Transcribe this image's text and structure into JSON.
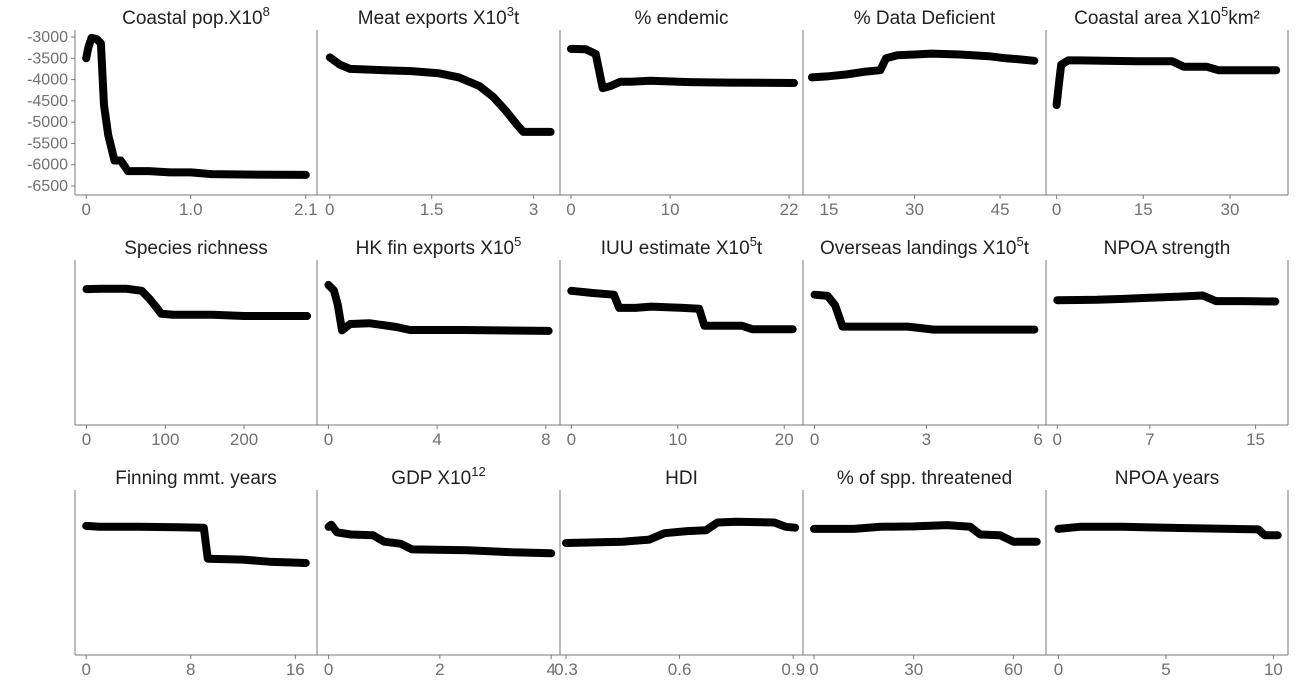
{
  "chart_data": {
    "type": "line",
    "layout": "small-multiples",
    "y_axis": {
      "ticks": [
        -3000,
        -3500,
        -4000,
        -4500,
        -5000,
        -5500,
        -6000,
        -6500
      ],
      "labels": [
        "-3000",
        "-3500",
        "-4000",
        "-4500",
        "-5000",
        "-5500",
        "-6000",
        "-6500"
      ]
    },
    "panels": [
      {
        "title": "Coastal pop.X10",
        "sup": "8",
        "suffix": "",
        "xlim": [
          -0.05,
          2.15
        ],
        "xticks": [
          0,
          1.0,
          2.1
        ],
        "xtick_labels": [
          "0",
          "1.0",
          "2.1"
        ],
        "points": [
          [
            0,
            -3500
          ],
          [
            0.02,
            -3250
          ],
          [
            0.05,
            -3020
          ],
          [
            0.1,
            -3050
          ],
          [
            0.14,
            -3150
          ],
          [
            0.17,
            -4600
          ],
          [
            0.21,
            -5300
          ],
          [
            0.27,
            -5900
          ],
          [
            0.33,
            -5900
          ],
          [
            0.4,
            -6150
          ],
          [
            0.6,
            -6150
          ],
          [
            0.8,
            -6180
          ],
          [
            1.0,
            -6180
          ],
          [
            1.2,
            -6220
          ],
          [
            1.5,
            -6230
          ],
          [
            2.1,
            -6240
          ]
        ]
      },
      {
        "title": "Meat exports X10",
        "sup": "3",
        "suffix": "t",
        "xlim": [
          -0.1,
          3.3
        ],
        "xticks": [
          0,
          1.5,
          3
        ],
        "xtick_labels": [
          "0",
          "1.5",
          "3"
        ],
        "points": [
          [
            0,
            -3480
          ],
          [
            0.15,
            -3650
          ],
          [
            0.3,
            -3750
          ],
          [
            0.8,
            -3780
          ],
          [
            1.2,
            -3800
          ],
          [
            1.6,
            -3850
          ],
          [
            1.9,
            -3950
          ],
          [
            2.2,
            -4150
          ],
          [
            2.4,
            -4400
          ],
          [
            2.6,
            -4750
          ],
          [
            2.75,
            -5050
          ],
          [
            2.85,
            -5230
          ],
          [
            3.25,
            -5230
          ]
        ]
      },
      {
        "title": "% endemic",
        "sup": "",
        "suffix": "",
        "xlim": [
          -0.5,
          22.8
        ],
        "xticks": [
          0,
          10,
          22
        ],
        "xtick_labels": [
          "0",
          "10",
          "22"
        ],
        "points": [
          [
            0,
            -3280
          ],
          [
            1.5,
            -3290
          ],
          [
            2.5,
            -3400
          ],
          [
            3.2,
            -4200
          ],
          [
            4,
            -4150
          ],
          [
            5,
            -4050
          ],
          [
            6,
            -4050
          ],
          [
            8,
            -4030
          ],
          [
            12,
            -4060
          ],
          [
            16,
            -4070
          ],
          [
            22.5,
            -4080
          ]
        ]
      },
      {
        "title": "% Data Deficient",
        "sup": "",
        "suffix": "",
        "xlim": [
          11.5,
          52
        ],
        "xticks": [
          15,
          30,
          45
        ],
        "xtick_labels": [
          "15",
          "30",
          "45"
        ],
        "points": [
          [
            12,
            -3950
          ],
          [
            15,
            -3920
          ],
          [
            18,
            -3880
          ],
          [
            21,
            -3820
          ],
          [
            24,
            -3780
          ],
          [
            25,
            -3500
          ],
          [
            27,
            -3430
          ],
          [
            30,
            -3410
          ],
          [
            33,
            -3390
          ],
          [
            38,
            -3410
          ],
          [
            43,
            -3450
          ],
          [
            46,
            -3500
          ],
          [
            48,
            -3520
          ],
          [
            51,
            -3560
          ]
        ]
      },
      {
        "title": "Coastal area X10",
        "sup": "5",
        "suffix": "km²",
        "xlim": [
          -0.8,
          39
        ],
        "xticks": [
          0,
          15,
          30
        ],
        "xtick_labels": [
          "0",
          "15",
          "30"
        ],
        "points": [
          [
            0,
            -4600
          ],
          [
            0.4,
            -4100
          ],
          [
            0.8,
            -3650
          ],
          [
            2,
            -3550
          ],
          [
            4,
            -3550
          ],
          [
            8,
            -3560
          ],
          [
            14,
            -3570
          ],
          [
            20,
            -3570
          ],
          [
            22,
            -3700
          ],
          [
            26,
            -3700
          ],
          [
            28,
            -3780
          ],
          [
            38,
            -3780
          ]
        ]
      },
      {
        "title": "Species richness",
        "sup": "",
        "suffix": "",
        "xlim": [
          -7,
          285
        ],
        "xticks": [
          0,
          100,
          200
        ],
        "xtick_labels": [
          "0",
          "100",
          "200"
        ],
        "points": [
          [
            0,
            -3520
          ],
          [
            20,
            -3510
          ],
          [
            50,
            -3510
          ],
          [
            70,
            -3560
          ],
          [
            80,
            -3750
          ],
          [
            88,
            -3930
          ],
          [
            95,
            -4100
          ],
          [
            110,
            -4120
          ],
          [
            160,
            -4120
          ],
          [
            200,
            -4150
          ],
          [
            280,
            -4150
          ]
        ]
      },
      {
        "title": "HK fin exports X10",
        "sup": "5",
        "suffix": "",
        "xlim": [
          -0.2,
          8.3
        ],
        "xticks": [
          0,
          4,
          8
        ],
        "xtick_labels": [
          "0",
          "4",
          "8"
        ],
        "points": [
          [
            0,
            -3420
          ],
          [
            0.2,
            -3550
          ],
          [
            0.35,
            -3900
          ],
          [
            0.5,
            -4490
          ],
          [
            0.8,
            -4340
          ],
          [
            1.5,
            -4320
          ],
          [
            2.5,
            -4410
          ],
          [
            3,
            -4480
          ],
          [
            5,
            -4480
          ],
          [
            8.1,
            -4500
          ]
        ]
      },
      {
        "title": "IUU estimate X10",
        "sup": "5",
        "suffix": "t",
        "xlim": [
          -0.5,
          21.2
        ],
        "xticks": [
          0,
          10,
          20
        ],
        "xtick_labels": [
          "0",
          "10",
          "20"
        ],
        "points": [
          [
            0,
            -3560
          ],
          [
            2,
            -3610
          ],
          [
            4,
            -3650
          ],
          [
            4.5,
            -3960
          ],
          [
            6,
            -3960
          ],
          [
            7.5,
            -3930
          ],
          [
            10.5,
            -3960
          ],
          [
            12,
            -3980
          ],
          [
            12.5,
            -4380
          ],
          [
            16,
            -4380
          ],
          [
            17,
            -4460
          ],
          [
            20.8,
            -4460
          ]
        ]
      },
      {
        "title": "Overseas landings X10",
        "sup": "5",
        "suffix": "t",
        "xlim": [
          -0.15,
          6.05
        ],
        "xticks": [
          0,
          3,
          6
        ],
        "xtick_labels": [
          "0",
          "3",
          "6"
        ],
        "points": [
          [
            0,
            -3650
          ],
          [
            0.35,
            -3680
          ],
          [
            0.55,
            -3900
          ],
          [
            0.75,
            -4400
          ],
          [
            1.5,
            -4400
          ],
          [
            2.5,
            -4400
          ],
          [
            3.2,
            -4470
          ],
          [
            5.9,
            -4470
          ]
        ]
      },
      {
        "title": "NPOA strength",
        "sup": "",
        "suffix": "",
        "xlim": [
          -0.4,
          17
        ],
        "xticks": [
          0,
          7,
          15
        ],
        "xtick_labels": [
          "0",
          "7",
          "15"
        ],
        "points": [
          [
            0,
            -3780
          ],
          [
            3,
            -3770
          ],
          [
            5,
            -3750
          ],
          [
            7,
            -3720
          ],
          [
            9,
            -3700
          ],
          [
            11,
            -3670
          ],
          [
            12,
            -3800
          ],
          [
            14,
            -3800
          ],
          [
            16.5,
            -3810
          ]
        ]
      },
      {
        "title": "Finning mmt. years",
        "sup": "",
        "suffix": "",
        "xlim": [
          -0.4,
          17.2
        ],
        "xticks": [
          0,
          8,
          16
        ],
        "xtick_labels": [
          "0",
          "8",
          "16"
        ],
        "points": [
          [
            0,
            -3680
          ],
          [
            1,
            -3700
          ],
          [
            4,
            -3700
          ],
          [
            7,
            -3710
          ],
          [
            9,
            -3720
          ],
          [
            9.3,
            -4450
          ],
          [
            12,
            -4470
          ],
          [
            14,
            -4520
          ],
          [
            16.8,
            -4550
          ]
        ]
      },
      {
        "title": "GDP X10",
        "sup": "12",
        "suffix": "",
        "xlim": [
          -0.1,
          4.05
        ],
        "xticks": [
          0,
          2,
          4
        ],
        "xtick_labels": [
          "0",
          "2",
          "4"
        ],
        "points": [
          [
            0,
            -3700
          ],
          [
            0.05,
            -3650
          ],
          [
            0.15,
            -3830
          ],
          [
            0.4,
            -3880
          ],
          [
            0.8,
            -3900
          ],
          [
            1,
            -4050
          ],
          [
            1.3,
            -4100
          ],
          [
            1.5,
            -4230
          ],
          [
            2.5,
            -4250
          ],
          [
            3.3,
            -4300
          ],
          [
            4,
            -4320
          ]
        ]
      },
      {
        "title": "HDI",
        "sup": "",
        "suffix": "",
        "xlim": [
          0.3,
          0.91
        ],
        "xticks": [
          0.3,
          0.6,
          0.9
        ],
        "xtick_labels": [
          "0.3",
          "0.6",
          "0.9"
        ],
        "points": [
          [
            0.3,
            -4080
          ],
          [
            0.45,
            -4050
          ],
          [
            0.52,
            -4000
          ],
          [
            0.56,
            -3850
          ],
          [
            0.62,
            -3800
          ],
          [
            0.67,
            -3780
          ],
          [
            0.7,
            -3600
          ],
          [
            0.75,
            -3580
          ],
          [
            0.85,
            -3600
          ],
          [
            0.88,
            -3700
          ],
          [
            0.905,
            -3720
          ]
        ]
      },
      {
        "title": "% of spp. threatened",
        "sup": "",
        "suffix": "",
        "xlim": [
          -1.5,
          68
        ],
        "xticks": [
          0,
          30,
          60
        ],
        "xtick_labels": [
          "0",
          "30",
          "60"
        ],
        "points": [
          [
            0,
            -3750
          ],
          [
            12,
            -3750
          ],
          [
            20,
            -3700
          ],
          [
            30,
            -3690
          ],
          [
            40,
            -3660
          ],
          [
            47,
            -3700
          ],
          [
            50,
            -3880
          ],
          [
            56,
            -3900
          ],
          [
            60,
            -4050
          ],
          [
            67,
            -4050
          ]
        ]
      },
      {
        "title": "NPOA years",
        "sup": "",
        "suffix": "",
        "xlim": [
          -0.3,
          10.4
        ],
        "xticks": [
          0,
          5,
          10
        ],
        "xtick_labels": [
          "0",
          "5",
          "10"
        ],
        "points": [
          [
            0,
            -3750
          ],
          [
            1,
            -3700
          ],
          [
            3,
            -3700
          ],
          [
            6,
            -3730
          ],
          [
            9.3,
            -3760
          ],
          [
            9.6,
            -3900
          ],
          [
            10.2,
            -3900
          ]
        ]
      }
    ]
  }
}
